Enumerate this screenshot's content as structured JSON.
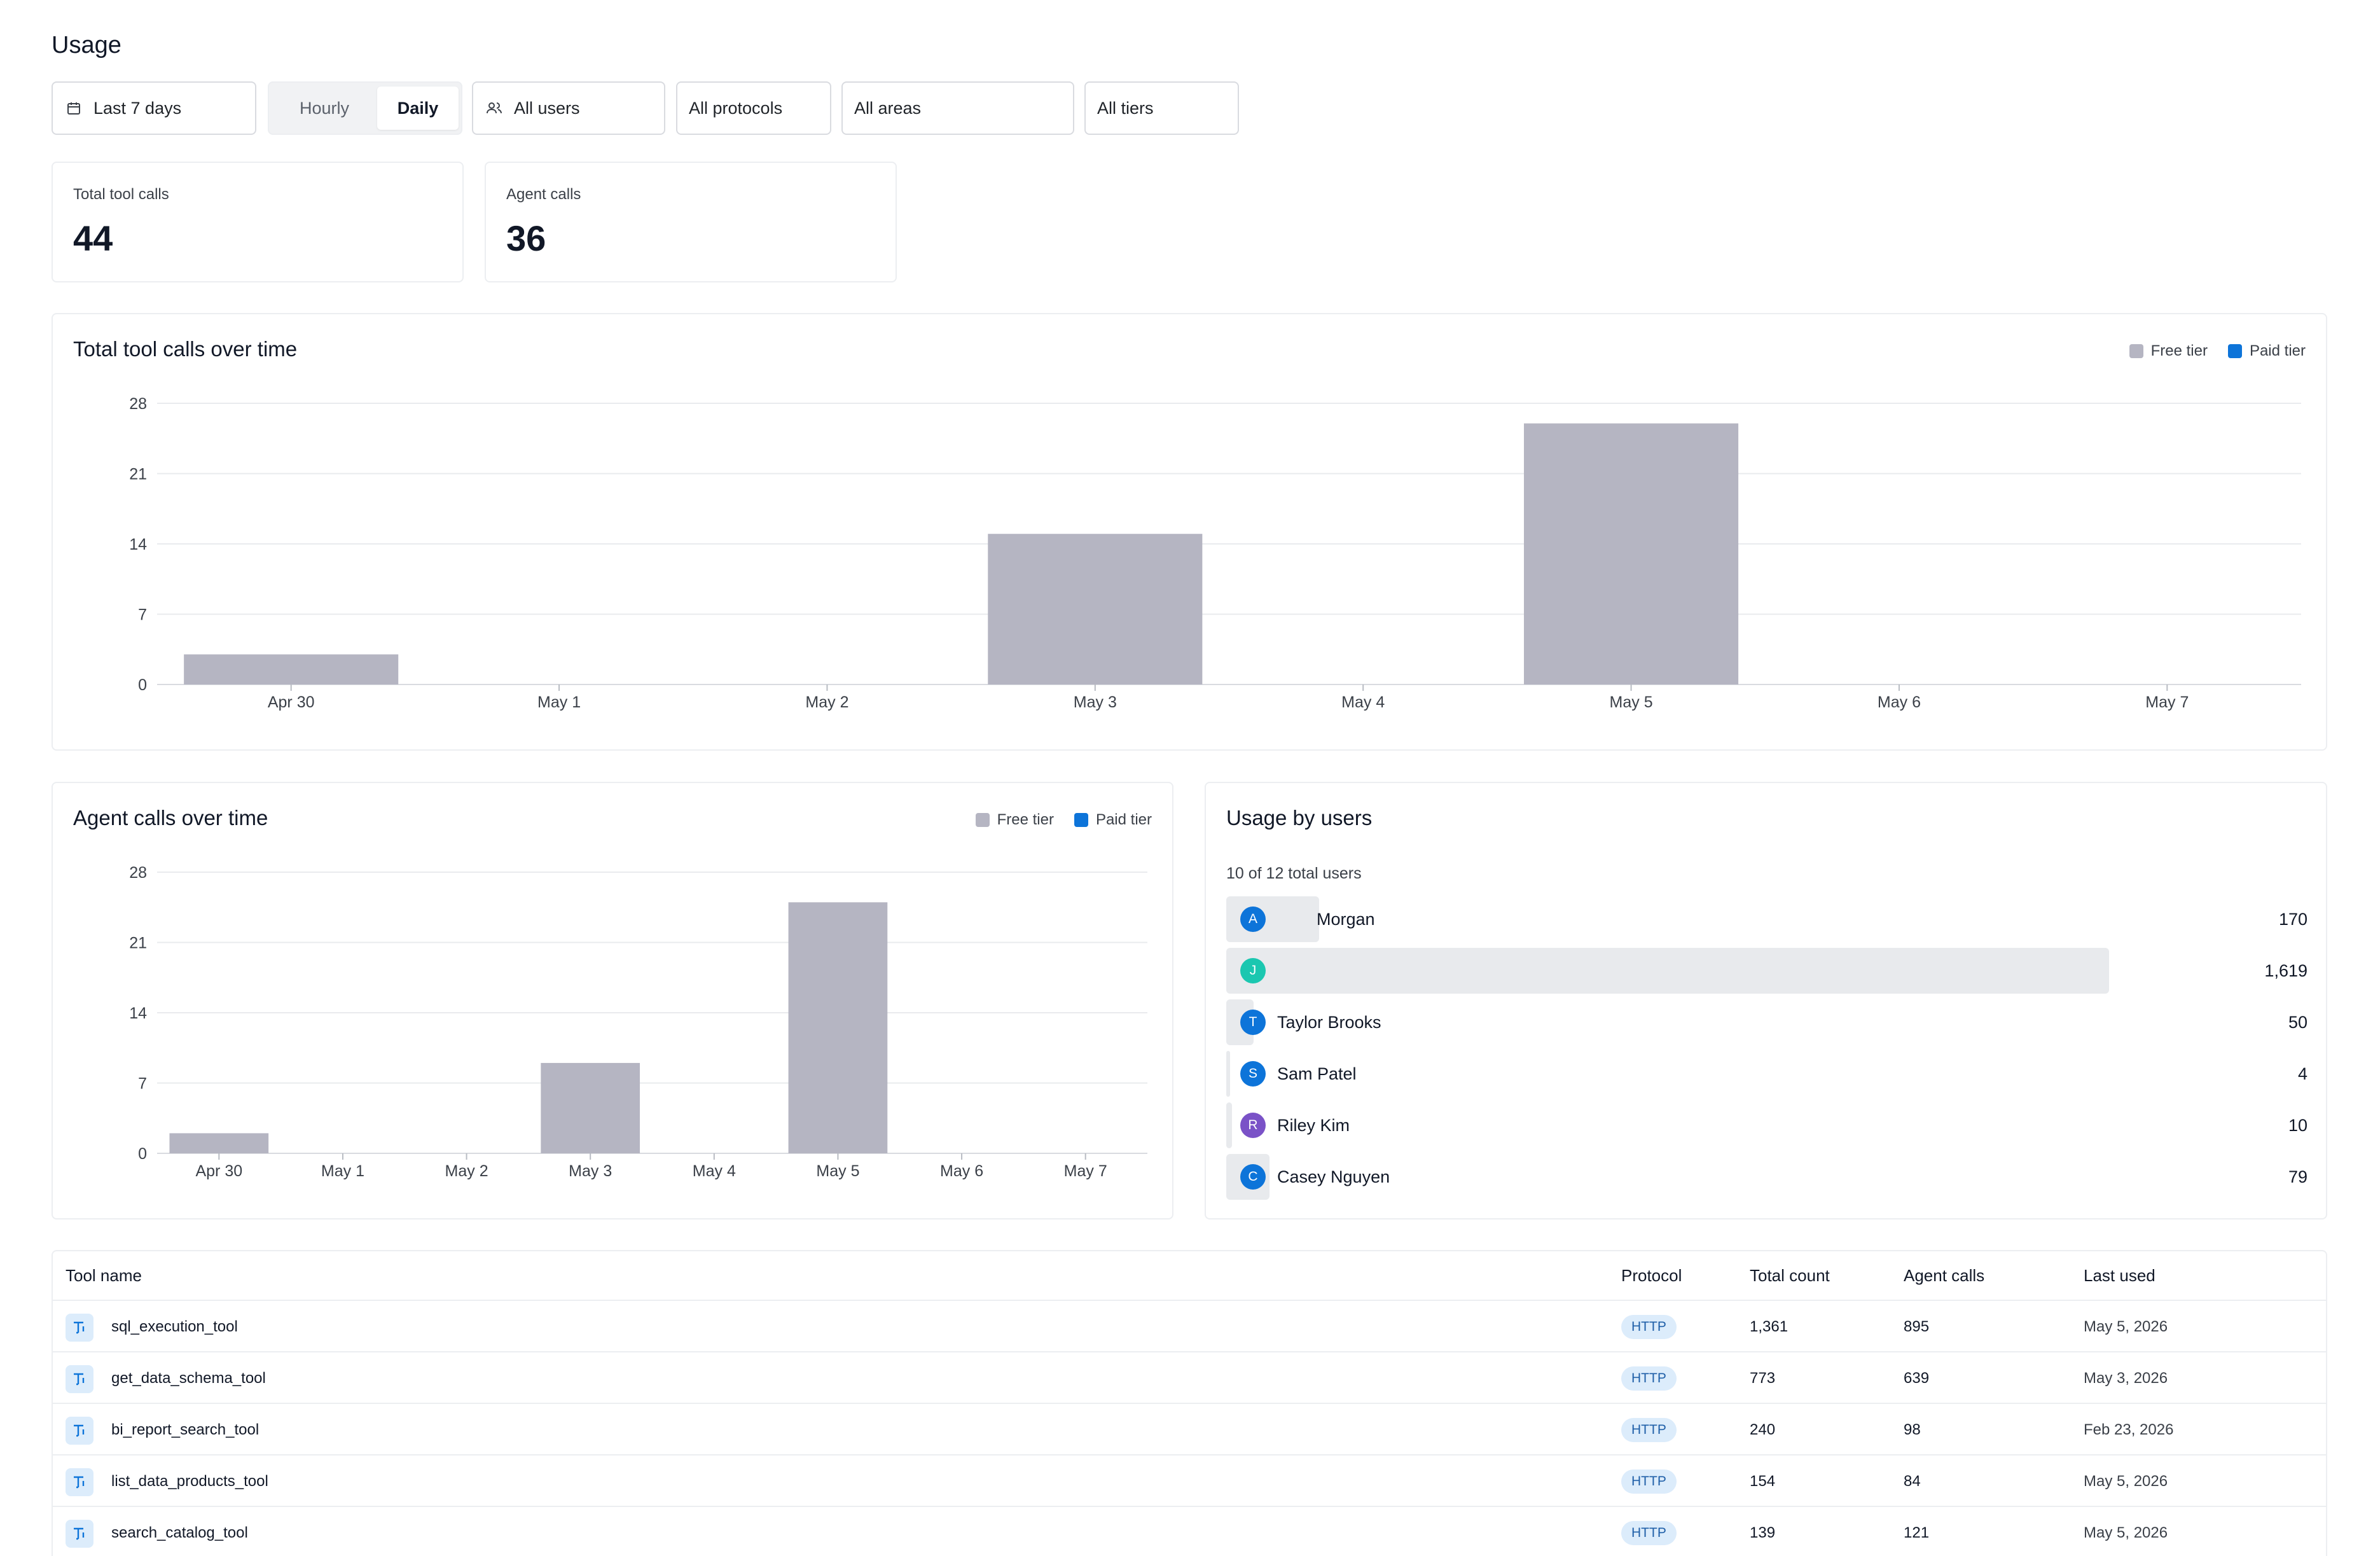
{
  "page": {
    "title": "Usage"
  },
  "filters": {
    "date_range": {
      "label": "Last 7 days",
      "icon": "calendar-icon"
    },
    "granularity": {
      "options": [
        "Hourly",
        "Daily"
      ],
      "selected": "Daily"
    },
    "users": {
      "label": "All users",
      "icon": "users-icon"
    },
    "protocols": {
      "label": "All protocols"
    },
    "areas": {
      "label": "All areas"
    },
    "tiers": {
      "label": "All tiers"
    }
  },
  "stats": {
    "total_tool_calls": {
      "label": "Total tool calls",
      "value": "44"
    },
    "agent_calls": {
      "label": "Agent calls",
      "value": "36"
    }
  },
  "colors": {
    "free_tier": "#b5b5c2",
    "paid_tier": "#0d74d9",
    "accent": "#0d74d9"
  },
  "chart_data": [
    {
      "type": "bar",
      "title": "Total tool calls over time",
      "categories": [
        "Apr 30",
        "May 1",
        "May 2",
        "May 3",
        "May 4",
        "May 5",
        "May 6",
        "May 7"
      ],
      "series": [
        {
          "name": "Free tier",
          "color": "#b5b5c2",
          "values": [
            3,
            0,
            0,
            15,
            0,
            26,
            0,
            0
          ]
        },
        {
          "name": "Paid tier",
          "color": "#0d74d9",
          "values": [
            0,
            0,
            0,
            0,
            0,
            0,
            0,
            0
          ]
        }
      ],
      "y_ticks": [
        "0",
        "7",
        "14",
        "21",
        "28"
      ],
      "ylim": [
        0,
        28
      ],
      "stacked": true,
      "grid": true,
      "legend": "top-right",
      "xlabel": "",
      "ylabel": ""
    },
    {
      "type": "bar",
      "title": "Agent calls over time",
      "categories": [
        "Apr 30",
        "May 1",
        "May 2",
        "May 3",
        "May 4",
        "May 5",
        "May 6",
        "May 7"
      ],
      "series": [
        {
          "name": "Free tier",
          "color": "#b5b5c2",
          "values": [
            2,
            0,
            0,
            9,
            0,
            25,
            0,
            0
          ]
        },
        {
          "name": "Paid tier",
          "color": "#0d74d9",
          "values": [
            0,
            0,
            0,
            0,
            0,
            0,
            0,
            0
          ]
        }
      ],
      "y_ticks": [
        "0",
        "7",
        "14",
        "21",
        "28"
      ],
      "ylim": [
        0,
        28
      ],
      "stacked": true,
      "grid": true,
      "legend": "top-right",
      "xlabel": "",
      "ylabel": ""
    }
  ],
  "users_usage": {
    "title": "Usage by users",
    "subtitle": "10 of 12 total users",
    "max_value": 1619,
    "rows": [
      {
        "initial": "A",
        "name": "Morgan",
        "value": "170",
        "count": 170,
        "color": "#0d74d9"
      },
      {
        "initial": "J",
        "name": "",
        "value": "1,619",
        "count": 1619,
        "color": "#1bc7b0"
      },
      {
        "initial": "T",
        "name": "Taylor Brooks",
        "value": "50",
        "count": 50,
        "color": "#0d74d9"
      },
      {
        "initial": "S",
        "name": "Sam Patel",
        "value": "4",
        "count": 4,
        "color": "#0d74d9"
      },
      {
        "initial": "R",
        "name": "Riley Kim",
        "value": "10",
        "count": 10,
        "color": "#7a52c7"
      },
      {
        "initial": "C",
        "name": "Casey Nguyen",
        "value": "79",
        "count": 79,
        "color": "#0d74d9"
      }
    ]
  },
  "tools_table": {
    "columns": [
      "Tool name",
      "Protocol",
      "Total count",
      "Agent calls",
      "Last used"
    ],
    "rows": [
      {
        "name": "sql_execution_tool",
        "protocol": "HTTP",
        "total": "1,361",
        "agent": "895",
        "last_used": "May 5, 2026"
      },
      {
        "name": "get_data_schema_tool",
        "protocol": "HTTP",
        "total": "773",
        "agent": "639",
        "last_used": "May 3, 2026"
      },
      {
        "name": "bi_report_search_tool",
        "protocol": "HTTP",
        "total": "240",
        "agent": "98",
        "last_used": "Feb 23, 2026"
      },
      {
        "name": "list_data_products_tool",
        "protocol": "HTTP",
        "total": "154",
        "agent": "84",
        "last_used": "May 5, 2026"
      },
      {
        "name": "search_catalog_tool",
        "protocol": "HTTP",
        "total": "139",
        "agent": "121",
        "last_used": "May 5, 2026"
      }
    ]
  }
}
